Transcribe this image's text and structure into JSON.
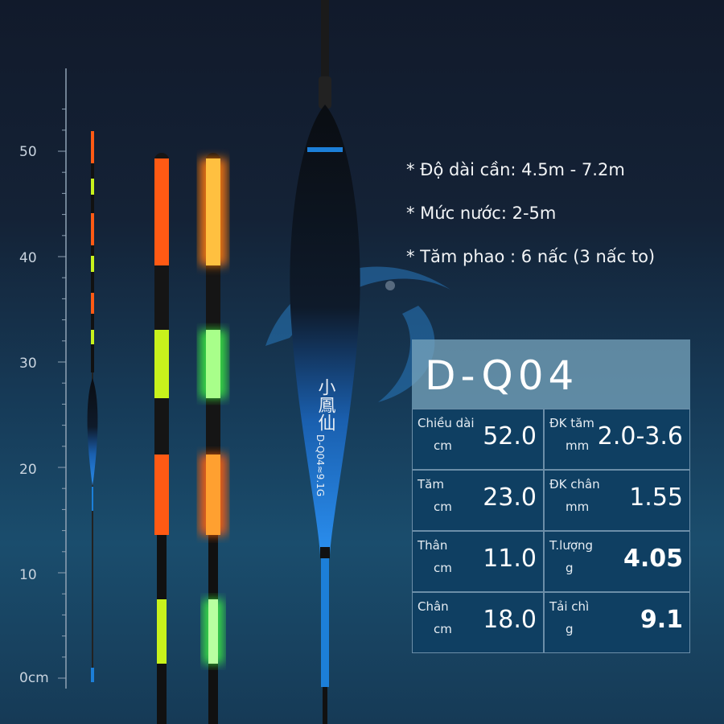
{
  "ruler": {
    "labels": [
      "50",
      "40",
      "30",
      "20",
      "10",
      "0cm"
    ]
  },
  "float": {
    "brand": "小鳳仙",
    "model_mark": "D-Q04≈9.1G"
  },
  "features": [
    "* Độ dài cần: 4.5m - 7.2m",
    "* Mức nước: 2-5m",
    "* Tăm phao : 6 nấc (3 nấc to)"
  ],
  "spec": {
    "title": "D-Q04",
    "cells": [
      {
        "label": "Chiều dài",
        "unit": "cm",
        "value": "52.0"
      },
      {
        "label": "ĐK tăm",
        "unit": "mm",
        "value": "2.0-3.6"
      },
      {
        "label": "Tăm",
        "unit": "cm",
        "value": "23.0"
      },
      {
        "label": "ĐK chân",
        "unit": "mm",
        "value": "1.55"
      },
      {
        "label": "Thân",
        "unit": "cm",
        "value": "11.0"
      },
      {
        "label": "T.lượng",
        "unit": "g",
        "value": "4.05"
      },
      {
        "label": "Chân",
        "unit": "cm",
        "value": "18.0"
      },
      {
        "label": "Tải chì",
        "unit": "g",
        "value": "9.1"
      }
    ]
  },
  "colors": {
    "orange": "#ff5a14",
    "lime": "#c8f21c",
    "glow_green": "#7dff5a",
    "glow_orange": "#ff9a20",
    "blue": "#1c7fd8",
    "panel": "#0f3f62"
  }
}
